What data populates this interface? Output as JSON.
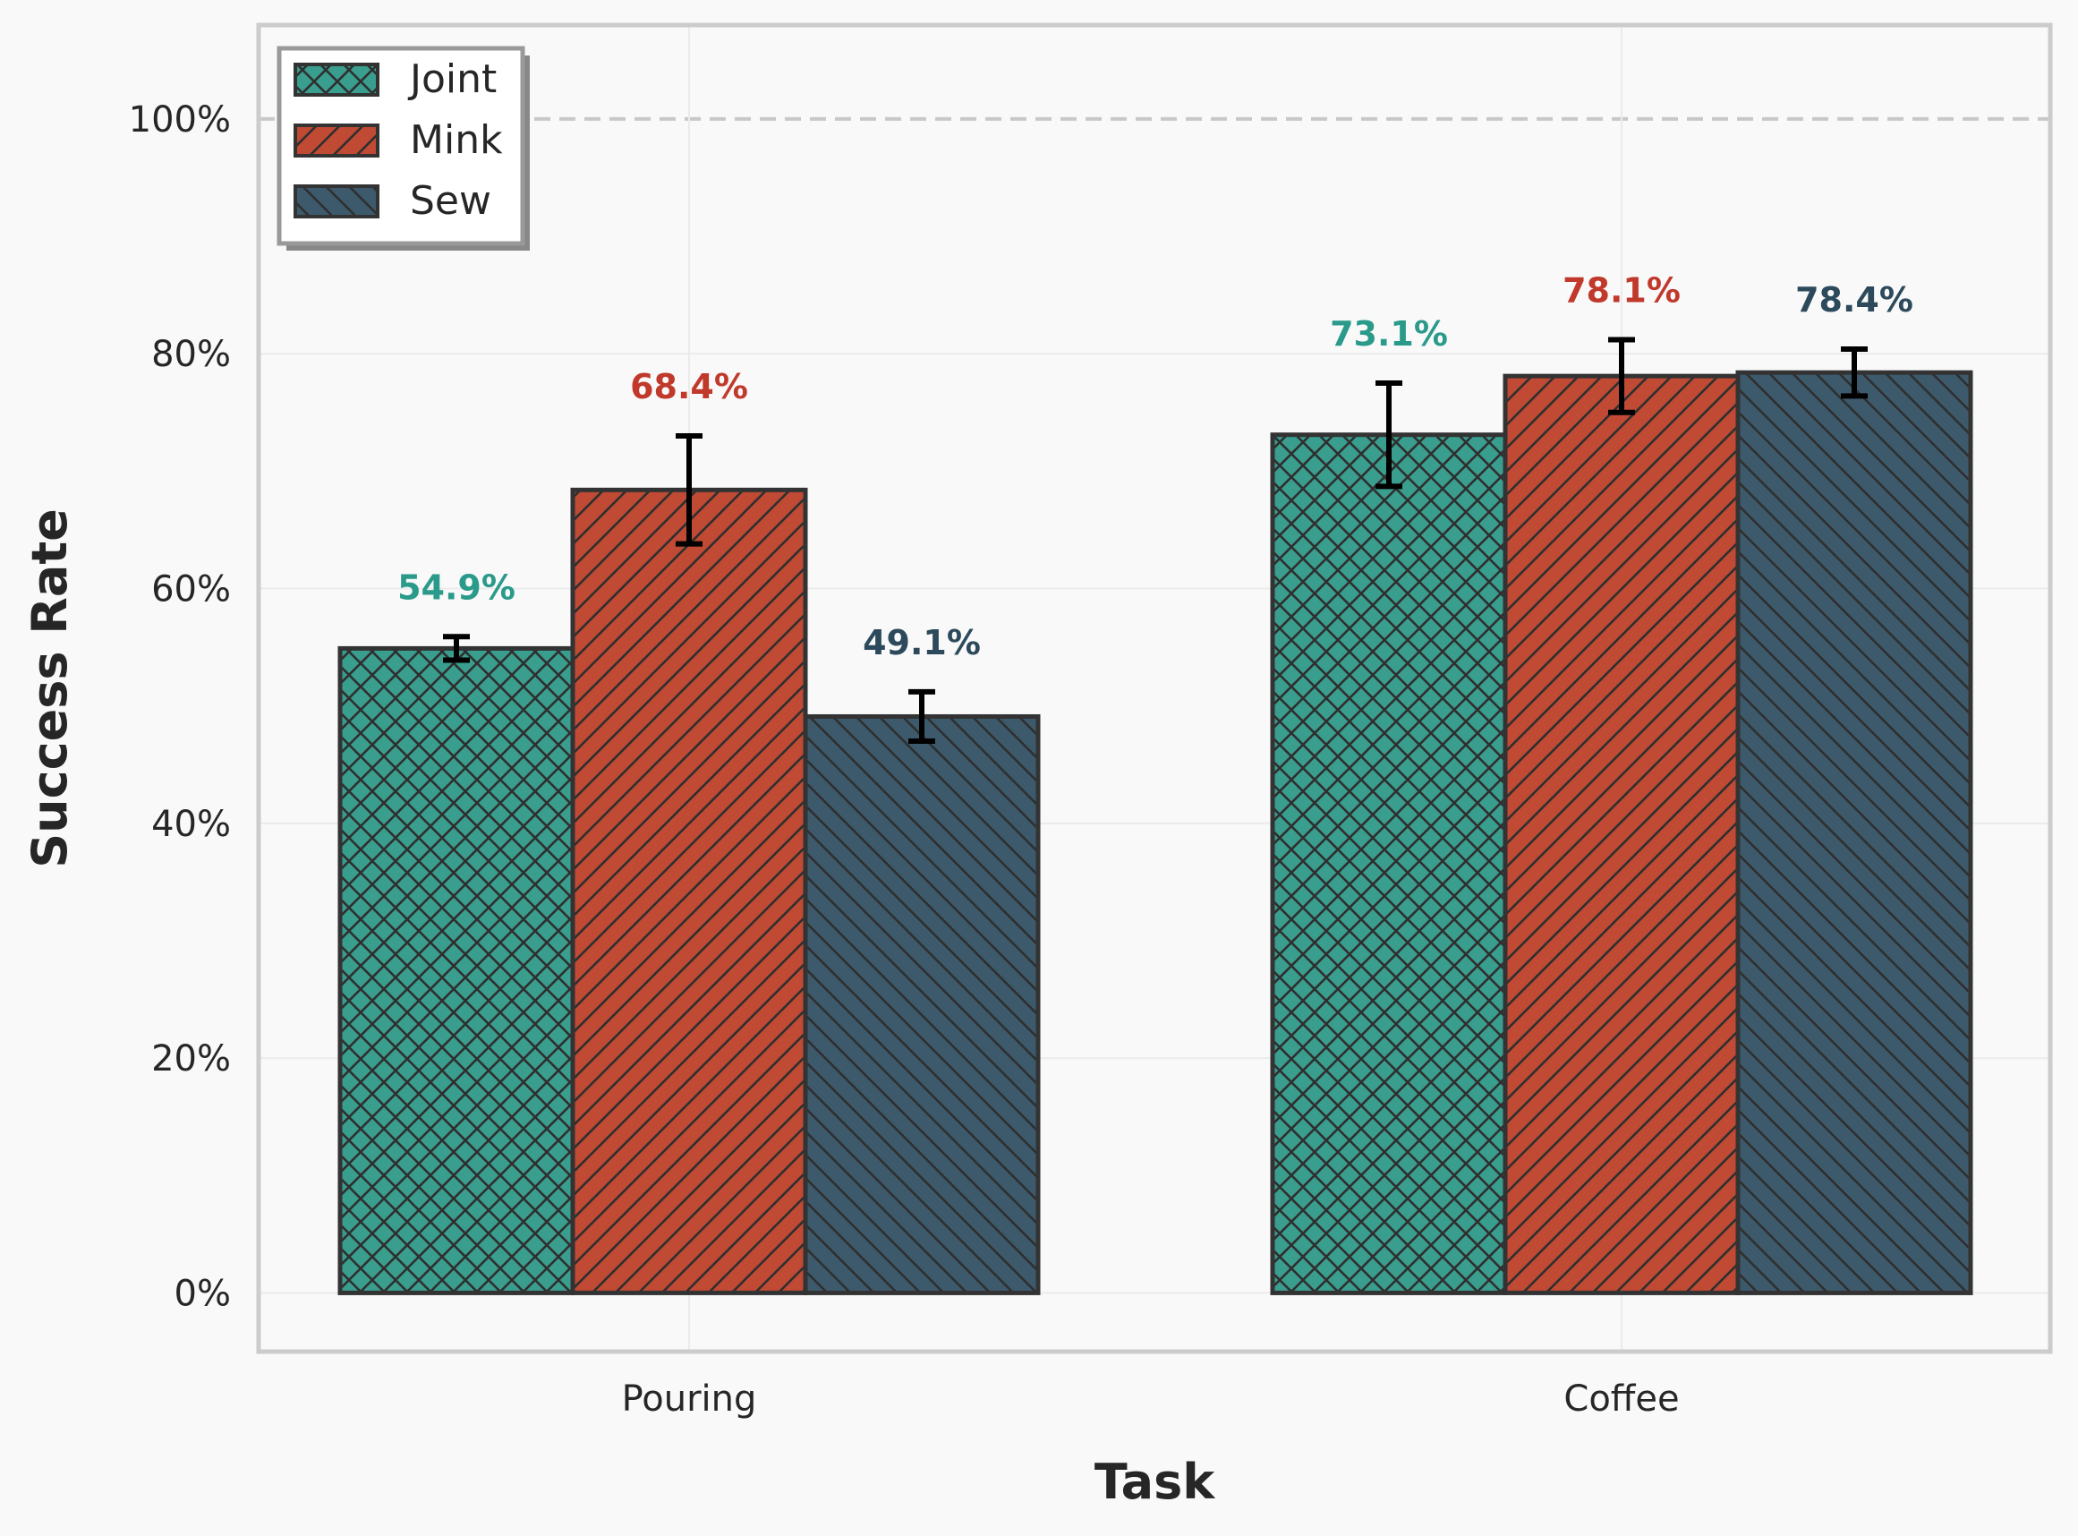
{
  "chart_data": {
    "type": "bar",
    "title": "",
    "xlabel": "Task",
    "ylabel": "Success Rate",
    "categories": [
      "Pouring",
      "Coffee"
    ],
    "ylim": [
      -5,
      108
    ],
    "yticks": [
      0,
      20,
      40,
      60,
      80,
      100
    ],
    "ytick_labels": [
      "0%",
      "20%",
      "40%",
      "60%",
      "80%",
      "100%"
    ],
    "reference_line": 100,
    "grid": true,
    "legend_position": "top-left",
    "series": [
      {
        "name": "Joint",
        "color": "#3a9e8f",
        "hatch": "cross",
        "values": [
          54.9,
          73.1
        ],
        "errors": [
          1.0,
          4.4
        ],
        "value_labels": [
          "54.9%",
          "73.1%"
        ]
      },
      {
        "name": "Mink",
        "color": "#c04a34",
        "hatch": "forward-diagonal",
        "values": [
          68.4,
          78.1
        ],
        "errors": [
          4.6,
          3.1
        ],
        "value_labels": [
          "68.4%",
          "78.1%"
        ]
      },
      {
        "name": "Sew",
        "color": "#3d5a6c",
        "hatch": "back-diagonal",
        "values": [
          49.1,
          78.4
        ],
        "errors": [
          2.1,
          2.0
        ],
        "value_labels": [
          "49.1%",
          "78.4%"
        ]
      }
    ],
    "label_colors": [
      "#2a9a8a",
      "#c0392b",
      "#2c4a5c"
    ]
  }
}
